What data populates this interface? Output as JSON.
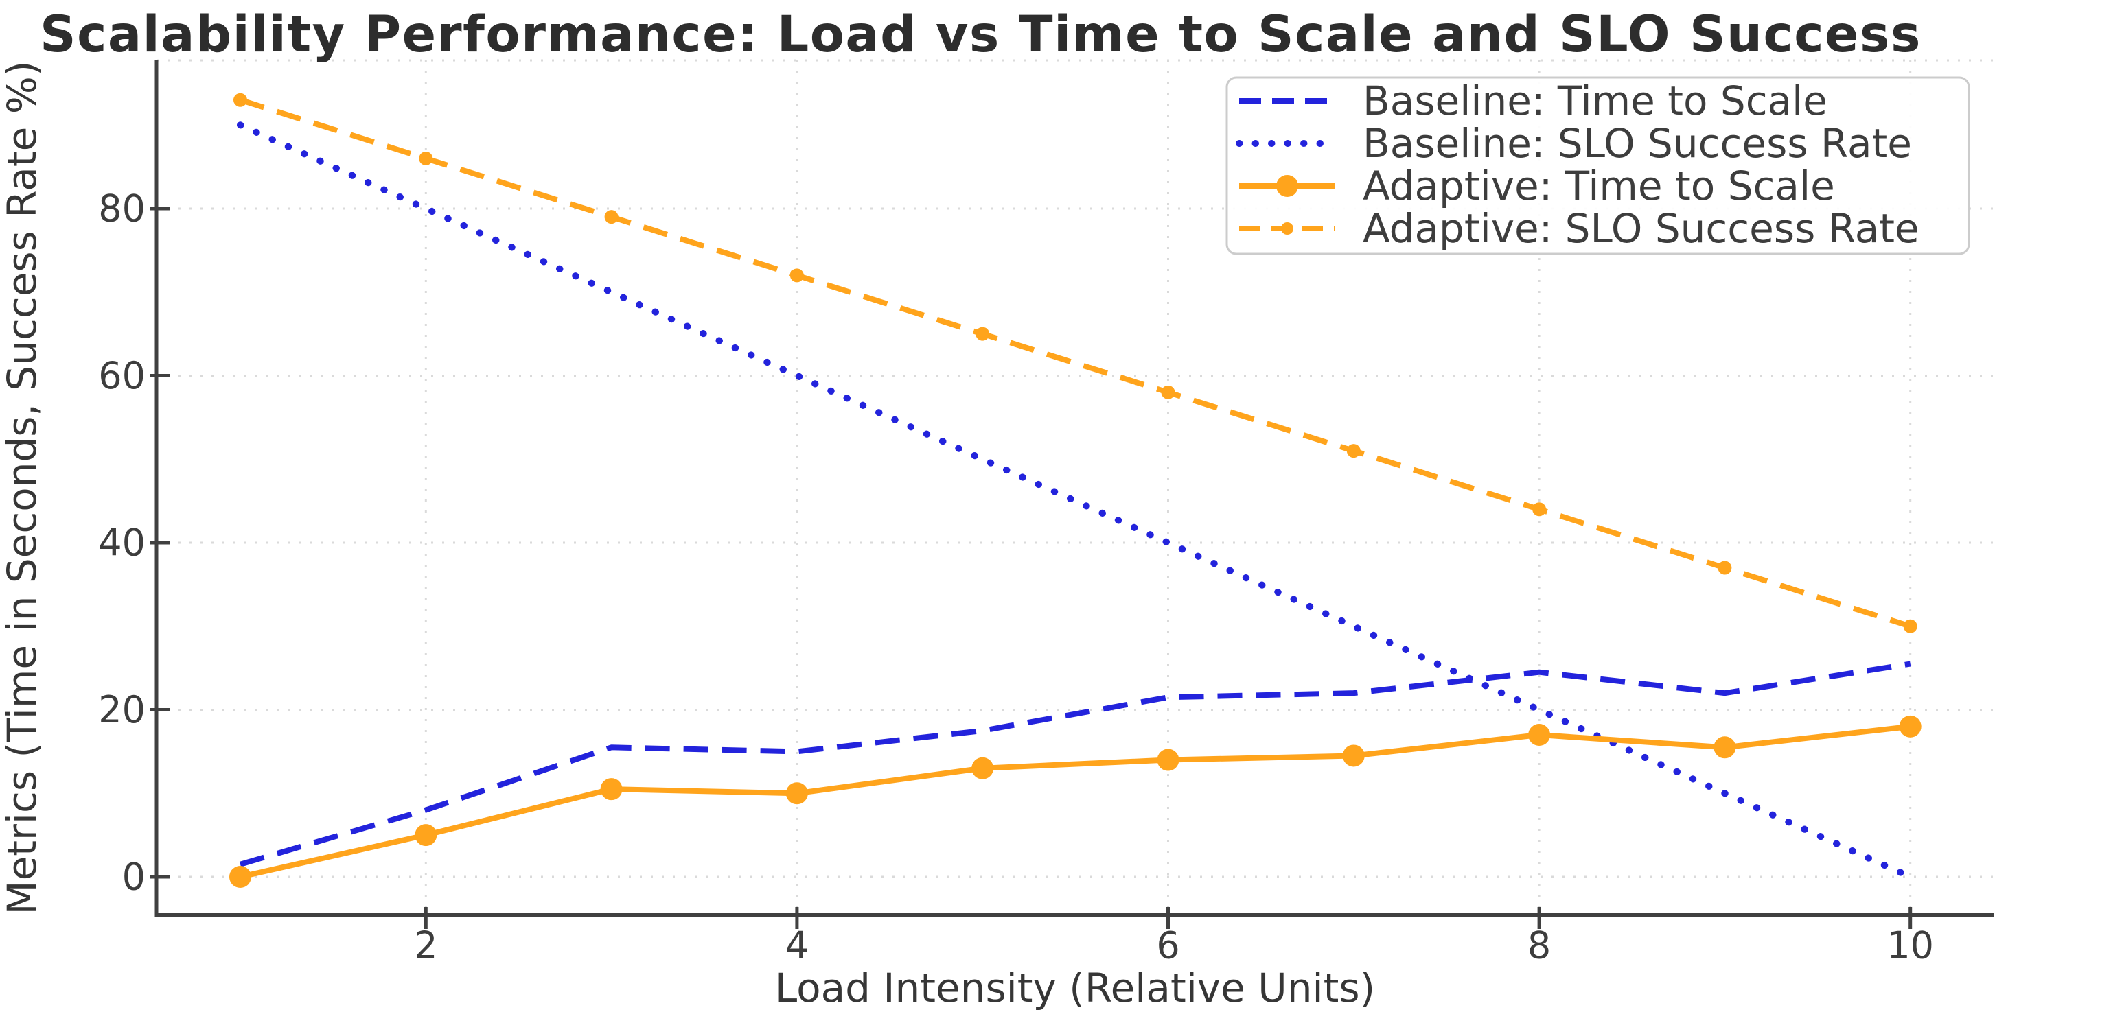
{
  "chart_data": {
    "type": "line",
    "title": "Scalability Performance: Load vs Time to Scale and SLO Success",
    "xlabel": "Load Intensity (Relative Units)",
    "ylabel": "Metrics (Time in Seconds, Success Rate %)",
    "x": [
      1,
      2,
      3,
      4,
      5,
      6,
      7,
      8,
      9,
      10
    ],
    "x_ticks": [
      2,
      4,
      6,
      8,
      10
    ],
    "y_ticks": [
      0,
      20,
      40,
      60,
      80
    ],
    "xlim": [
      0.55,
      10.45
    ],
    "ylim": [
      -4.65,
      97.65
    ],
    "grid": true,
    "grid_style": "dotted-light-gray",
    "legend_position": "upper-right",
    "background_color": "#ffffff",
    "series": [
      {
        "name": "Baseline: Time to Scale",
        "color": "#2323dc",
        "style": "dashed",
        "marker": "none",
        "values": [
          1.5,
          8,
          15.5,
          15,
          17.5,
          21.5,
          22,
          24.5,
          22,
          25.5
        ]
      },
      {
        "name": "Baseline: SLO Success Rate",
        "color": "#2323dc",
        "style": "dotted",
        "marker": "none",
        "values": [
          90,
          80,
          70,
          60,
          50,
          40,
          30,
          20,
          10,
          0
        ]
      },
      {
        "name": "Adaptive: Time to Scale",
        "color": "#ffa41c",
        "style": "solid",
        "marker": "circle",
        "values": [
          0,
          5,
          10.5,
          10,
          13,
          14,
          14.5,
          17,
          15.5,
          18
        ]
      },
      {
        "name": "Adaptive: SLO Success Rate",
        "color": "#ffa41c",
        "style": "dashed",
        "marker": "circle-small",
        "values": [
          93,
          86,
          79,
          72,
          65,
          58,
          51,
          44,
          37,
          30
        ]
      }
    ]
  }
}
